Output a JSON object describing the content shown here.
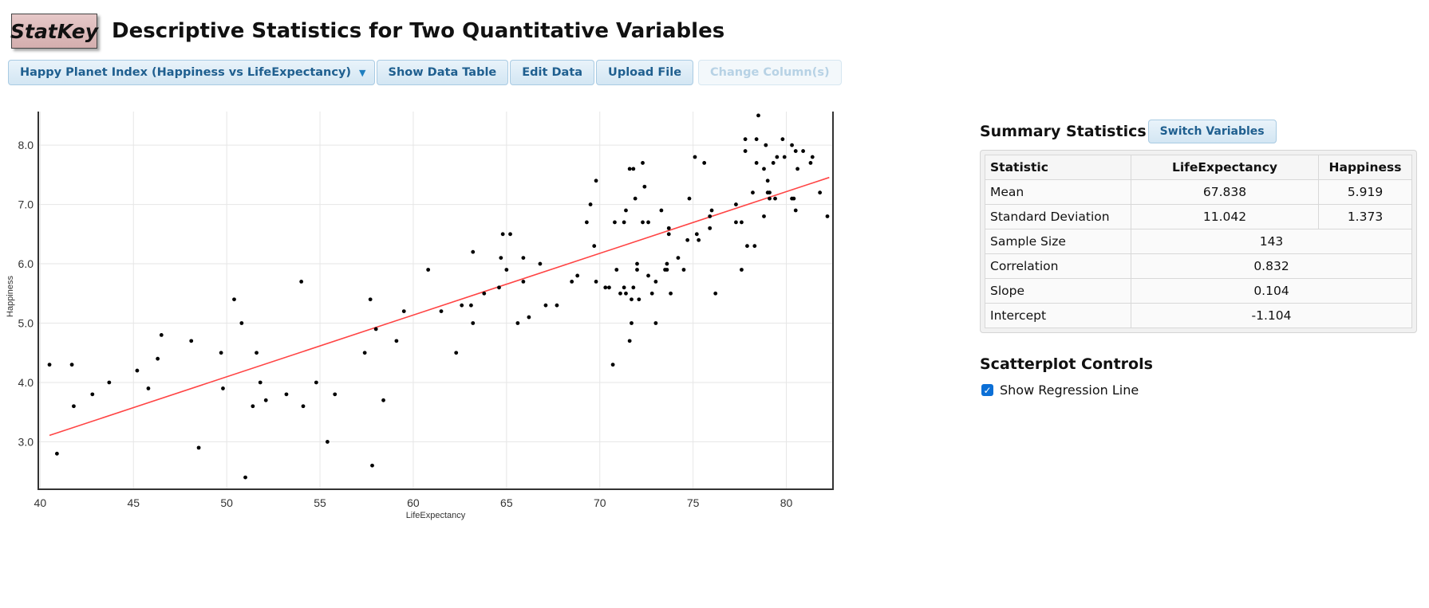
{
  "header": {
    "logo_text": "StatKey",
    "title": "Descriptive Statistics for Two Quantitative Variables"
  },
  "toolbar": {
    "dataset_label": "Happy Planet Index (Happiness vs LifeExpectancy)",
    "show_table_label": "Show Data Table",
    "edit_data_label": "Edit Data",
    "upload_label": "Upload File",
    "change_columns_label": "Change Column(s)"
  },
  "summary": {
    "title": "Summary Statistics",
    "switch_label": "Switch Variables",
    "headers": [
      "Statistic",
      "LifeExpectancy",
      "Happiness"
    ],
    "mean": {
      "label": "Mean",
      "x": "67.838",
      "y": "5.919"
    },
    "sd": {
      "label": "Standard Deviation",
      "x": "11.042",
      "y": "1.373"
    },
    "n": {
      "label": "Sample Size",
      "value": "143"
    },
    "correlation": {
      "label": "Correlation",
      "value": "0.832"
    },
    "slope": {
      "label": "Slope",
      "value": "0.104"
    },
    "intercept": {
      "label": "Intercept",
      "value": "-1.104"
    }
  },
  "controls": {
    "title": "Scatterplot Controls",
    "regression_label": "Show Regression Line",
    "regression_checked": true
  },
  "colors": {
    "regression_line": "#ff4444",
    "points": "#000000",
    "button_text": "#1f5f8f"
  },
  "chart_data": {
    "type": "scatter",
    "xlabel": "LifeExpectancy",
    "ylabel": "Happiness",
    "xlim": [
      39.9,
      82.5
    ],
    "ylim": [
      2.2,
      8.7
    ],
    "xticks": [
      40,
      45,
      50,
      55,
      60,
      65,
      70,
      75,
      80
    ],
    "yticks": [
      3.0,
      4.0,
      5.0,
      6.0,
      7.0,
      8.0
    ],
    "ytick_labels": [
      "3.0",
      "4.0",
      "5.0",
      "6.0",
      "7.0",
      "8.0"
    ],
    "grid": true,
    "regression": {
      "slope": 0.104,
      "intercept": -1.104,
      "x_range": [
        40.5,
        82.3
      ]
    },
    "points": [
      [
        40.5,
        4.3
      ],
      [
        40.9,
        2.8
      ],
      [
        41.7,
        4.3
      ],
      [
        41.8,
        3.6
      ],
      [
        42.8,
        3.8
      ],
      [
        43.7,
        4.0
      ],
      [
        45.2,
        4.2
      ],
      [
        45.8,
        3.9
      ],
      [
        46.3,
        4.4
      ],
      [
        46.5,
        4.8
      ],
      [
        48.1,
        4.7
      ],
      [
        48.5,
        2.9
      ],
      [
        49.7,
        4.5
      ],
      [
        49.8,
        3.9
      ],
      [
        50.4,
        5.4
      ],
      [
        50.8,
        5.0
      ],
      [
        51.0,
        2.4
      ],
      [
        51.4,
        3.6
      ],
      [
        51.6,
        4.5
      ],
      [
        51.8,
        4.0
      ],
      [
        52.1,
        3.7
      ],
      [
        53.2,
        3.8
      ],
      [
        54.0,
        5.7
      ],
      [
        54.1,
        3.6
      ],
      [
        54.8,
        4.0
      ],
      [
        55.4,
        3.0
      ],
      [
        55.8,
        3.8
      ],
      [
        57.4,
        4.5
      ],
      [
        57.7,
        5.4
      ],
      [
        57.8,
        2.6
      ],
      [
        58.0,
        4.9
      ],
      [
        58.4,
        3.7
      ],
      [
        59.1,
        4.7
      ],
      [
        59.5,
        5.2
      ],
      [
        60.8,
        5.9
      ],
      [
        61.5,
        5.2
      ],
      [
        62.3,
        4.5
      ],
      [
        62.6,
        5.3
      ],
      [
        63.1,
        5.3
      ],
      [
        63.2,
        5.0
      ],
      [
        63.2,
        6.2
      ],
      [
        63.8,
        5.5
      ],
      [
        64.6,
        5.6
      ],
      [
        64.7,
        6.1
      ],
      [
        64.8,
        6.5
      ],
      [
        65.0,
        5.9
      ],
      [
        65.2,
        6.5
      ],
      [
        65.6,
        5.0
      ],
      [
        65.9,
        6.1
      ],
      [
        65.9,
        5.7
      ],
      [
        66.2,
        5.1
      ],
      [
        66.8,
        6.0
      ],
      [
        67.1,
        5.3
      ],
      [
        67.7,
        5.3
      ],
      [
        68.5,
        5.7
      ],
      [
        68.8,
        5.8
      ],
      [
        69.3,
        6.7
      ],
      [
        69.5,
        7.0
      ],
      [
        69.7,
        6.3
      ],
      [
        69.8,
        7.4
      ],
      [
        69.8,
        5.7
      ],
      [
        70.3,
        5.6
      ],
      [
        70.5,
        5.6
      ],
      [
        70.7,
        4.3
      ],
      [
        70.8,
        6.7
      ],
      [
        70.9,
        5.9
      ],
      [
        71.1,
        5.5
      ],
      [
        71.3,
        5.6
      ],
      [
        71.3,
        6.7
      ],
      [
        71.4,
        6.9
      ],
      [
        71.4,
        5.5
      ],
      [
        71.6,
        4.7
      ],
      [
        71.6,
        7.6
      ],
      [
        71.7,
        5.4
      ],
      [
        71.7,
        5.0
      ],
      [
        71.8,
        7.6
      ],
      [
        71.8,
        5.6
      ],
      [
        71.9,
        7.1
      ],
      [
        72.0,
        6.0
      ],
      [
        72.0,
        5.9
      ],
      [
        72.1,
        5.4
      ],
      [
        72.3,
        7.7
      ],
      [
        72.3,
        6.7
      ],
      [
        72.4,
        7.3
      ],
      [
        72.6,
        6.7
      ],
      [
        72.6,
        5.8
      ],
      [
        72.8,
        5.5
      ],
      [
        73.0,
        5.7
      ],
      [
        73.0,
        5.0
      ],
      [
        73.3,
        6.9
      ],
      [
        73.5,
        5.9
      ],
      [
        73.6,
        6.0
      ],
      [
        73.6,
        5.9
      ],
      [
        73.7,
        6.5
      ],
      [
        73.7,
        6.6
      ],
      [
        73.8,
        5.5
      ],
      [
        74.2,
        6.1
      ],
      [
        74.5,
        5.9
      ],
      [
        74.7,
        6.4
      ],
      [
        74.8,
        7.1
      ],
      [
        75.1,
        7.8
      ],
      [
        75.2,
        6.5
      ],
      [
        75.3,
        6.4
      ],
      [
        75.6,
        7.7
      ],
      [
        75.9,
        6.6
      ],
      [
        75.9,
        6.8
      ],
      [
        76.0,
        6.9
      ],
      [
        76.2,
        5.5
      ],
      [
        77.3,
        7.0
      ],
      [
        77.3,
        6.7
      ],
      [
        77.6,
        6.7
      ],
      [
        77.6,
        5.9
      ],
      [
        77.8,
        8.1
      ],
      [
        77.8,
        7.9
      ],
      [
        77.9,
        6.3
      ],
      [
        78.2,
        7.2
      ],
      [
        78.3,
        6.3
      ],
      [
        78.4,
        8.1
      ],
      [
        78.4,
        7.7
      ],
      [
        78.5,
        8.5
      ],
      [
        78.8,
        7.6
      ],
      [
        78.8,
        6.8
      ],
      [
        78.9,
        8.0
      ],
      [
        79.0,
        7.4
      ],
      [
        79.0,
        7.2
      ],
      [
        79.1,
        7.1
      ],
      [
        79.1,
        7.2
      ],
      [
        79.3,
        7.7
      ],
      [
        79.4,
        7.1
      ],
      [
        79.5,
        7.8
      ],
      [
        79.8,
        8.1
      ],
      [
        79.9,
        7.8
      ],
      [
        80.3,
        7.1
      ],
      [
        80.3,
        8.0
      ],
      [
        80.4,
        7.1
      ],
      [
        80.5,
        6.9
      ],
      [
        80.5,
        7.9
      ],
      [
        80.6,
        7.6
      ],
      [
        80.9,
        7.9
      ],
      [
        81.3,
        7.7
      ],
      [
        81.4,
        7.8
      ],
      [
        81.8,
        7.2
      ],
      [
        82.2,
        6.8
      ]
    ]
  }
}
